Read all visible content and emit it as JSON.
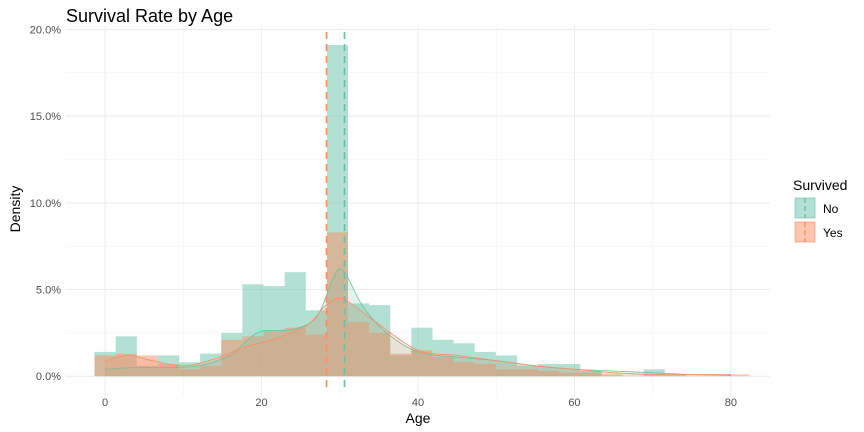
{
  "chart_data": {
    "type": "histogram-density",
    "title": "Survival Rate by Age",
    "xlabel": "Age",
    "ylabel": "Density",
    "xlim": [
      -5,
      85
    ],
    "ylim": [
      -0.012,
      0.202
    ],
    "x_ticks": [
      0,
      20,
      40,
      60,
      80
    ],
    "x_tick_labels": [
      "0",
      "20",
      "40",
      "60",
      "80"
    ],
    "y_ticks": [
      0.0,
      0.05,
      0.1,
      0.15,
      0.2
    ],
    "y_tick_labels": [
      "0.0%",
      "5.0%",
      "10.0%",
      "15.0%",
      "20.0%"
    ],
    "grid": true,
    "legend": {
      "title": "Survived",
      "position": "right"
    },
    "bin_width": 2.7,
    "bin_starts": [
      -1.35,
      1.35,
      4.05,
      6.75,
      9.45,
      12.15,
      14.85,
      17.55,
      20.25,
      22.95,
      25.65,
      28.35,
      31.05,
      33.75,
      36.45,
      39.15,
      41.85,
      44.55,
      47.25,
      49.95,
      52.65,
      55.35,
      58.05,
      60.75,
      63.45,
      66.15,
      68.85,
      71.55,
      74.25,
      76.95,
      79.65
    ],
    "series": [
      {
        "name": "No",
        "color": "#66c2a5",
        "mean": 30.6,
        "histogram": [
          0.014,
          0.023,
          0.006,
          0.012,
          0.008,
          0.013,
          0.025,
          0.053,
          0.052,
          0.06,
          0.038,
          0.191,
          0.042,
          0.041,
          0.012,
          0.028,
          0.021,
          0.019,
          0.014,
          0.012,
          0.006,
          0.007,
          0.007,
          0.003,
          0.0,
          0.0,
          0.004,
          0.001,
          0.0,
          0.0,
          0.0
        ],
        "density": [
          [
            0,
            0.004
          ],
          [
            4,
            0.005
          ],
          [
            8,
            0.005
          ],
          [
            12,
            0.006
          ],
          [
            16,
            0.012
          ],
          [
            18,
            0.02
          ],
          [
            20,
            0.026
          ],
          [
            24,
            0.027
          ],
          [
            27,
            0.034
          ],
          [
            29,
            0.055
          ],
          [
            30,
            0.062
          ],
          [
            31,
            0.057
          ],
          [
            33,
            0.04
          ],
          [
            36,
            0.025
          ],
          [
            40,
            0.014
          ],
          [
            45,
            0.011
          ],
          [
            50,
            0.009
          ],
          [
            55,
            0.006
          ],
          [
            60,
            0.004
          ],
          [
            65,
            0.003
          ],
          [
            70,
            0.002
          ],
          [
            75,
            0.001
          ],
          [
            80,
            0.0005
          ]
        ]
      },
      {
        "name": "Yes",
        "color": "#fc8d62",
        "mean": 28.3,
        "histogram": [
          0.012,
          0.013,
          0.012,
          0.007,
          0.004,
          0.006,
          0.021,
          0.023,
          0.026,
          0.028,
          0.024,
          0.083,
          0.031,
          0.025,
          0.013,
          0.015,
          0.011,
          0.008,
          0.007,
          0.004,
          0.004,
          0.003,
          0.002,
          0.002,
          0.001,
          0.0,
          0.0,
          0.0,
          0.0,
          0.0,
          0.001
        ],
        "density": [
          [
            0,
            0.009
          ],
          [
            3,
            0.012
          ],
          [
            6,
            0.009
          ],
          [
            10,
            0.006
          ],
          [
            14,
            0.01
          ],
          [
            18,
            0.017
          ],
          [
            22,
            0.022
          ],
          [
            26,
            0.03
          ],
          [
            28,
            0.04
          ],
          [
            30,
            0.045
          ],
          [
            32,
            0.04
          ],
          [
            35,
            0.03
          ],
          [
            40,
            0.015
          ],
          [
            45,
            0.012
          ],
          [
            50,
            0.009
          ],
          [
            55,
            0.006
          ],
          [
            60,
            0.004
          ],
          [
            65,
            0.002
          ],
          [
            70,
            0.001
          ],
          [
            75,
            0.001
          ],
          [
            80,
            0.001
          ]
        ]
      }
    ]
  }
}
